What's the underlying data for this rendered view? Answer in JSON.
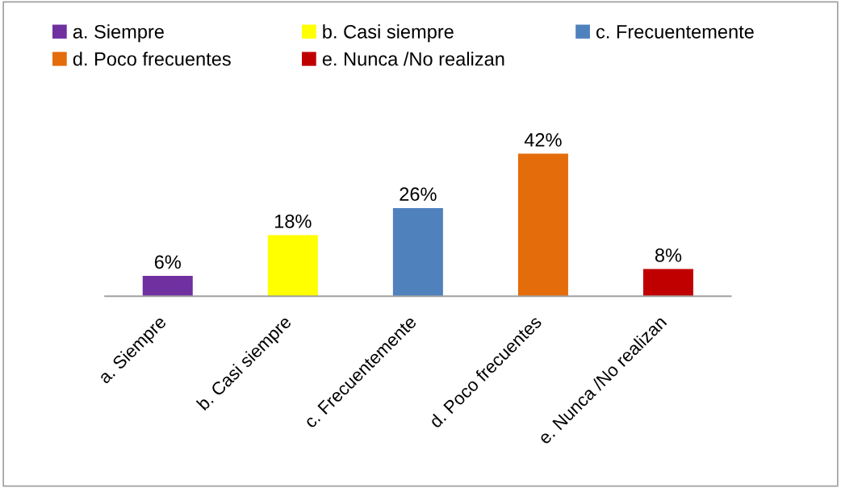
{
  "chart_data": {
    "type": "bar",
    "categories": [
      "a. Siempre",
      "b. Casi siempre",
      "c. Frecuentemente",
      "d. Poco frecuentes",
      "e. Nunca /No realizan"
    ],
    "series": [
      {
        "name": "a. Siempre",
        "color": "#7030a0",
        "values": [
          6,
          null,
          null,
          null,
          null
        ],
        "value_labels": [
          "6%",
          null,
          null,
          null,
          null
        ]
      },
      {
        "name": "b. Casi siempre",
        "color": "#ffff00",
        "values": [
          null,
          18,
          null,
          null,
          null
        ],
        "value_labels": [
          null,
          "18%",
          null,
          null,
          null
        ]
      },
      {
        "name": "c. Frecuentemente",
        "color": "#4f81bd",
        "values": [
          null,
          null,
          26,
          null,
          null
        ],
        "value_labels": [
          null,
          null,
          "26%",
          null,
          null
        ]
      },
      {
        "name": "d. Poco frecuentes",
        "color": "#e46c0a",
        "values": [
          null,
          null,
          null,
          42,
          null
        ],
        "value_labels": [
          null,
          null,
          null,
          "42%",
          null
        ]
      },
      {
        "name": "e. Nunca /No realizan",
        "color": "#c00000",
        "values": [
          null,
          null,
          null,
          null,
          8
        ],
        "value_labels": [
          null,
          null,
          null,
          null,
          "8%"
        ]
      }
    ],
    "legend": "top",
    "grid": false
  }
}
